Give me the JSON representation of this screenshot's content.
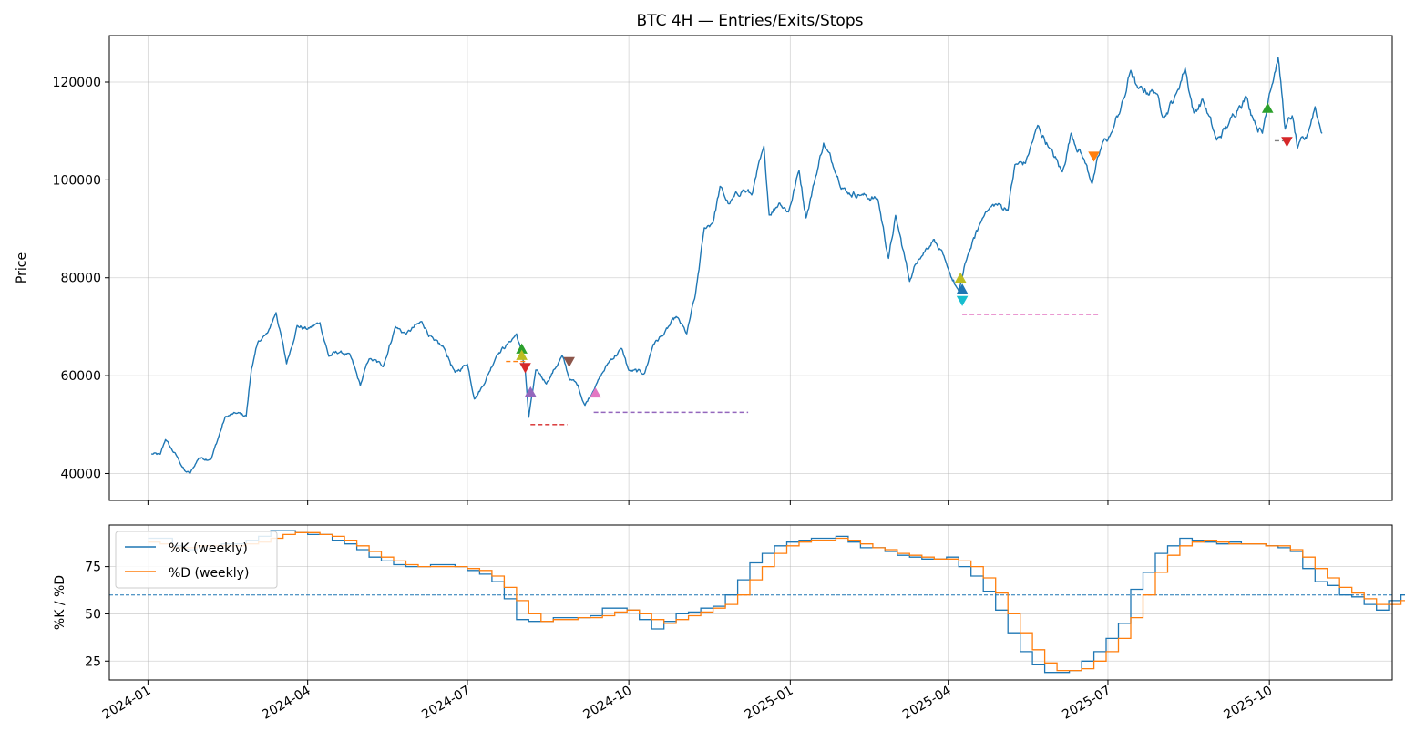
{
  "chart_data": [
    {
      "type": "line",
      "title": "BTC 4H — Entries/Exits/Stops",
      "xlabel": "",
      "ylabel": "Price",
      "xlim": [
        "2023-12-10",
        "2025-12-10"
      ],
      "ylim": [
        34500,
        129500
      ],
      "yticks": [
        40000,
        60000,
        80000,
        100000,
        120000
      ],
      "grid": true,
      "series": [
        {
          "color": "#1f77b4",
          "points": [
            [
              "2024-01-03",
              44000
            ],
            [
              "2024-01-08",
              43800
            ],
            [
              "2024-01-11",
              47000
            ],
            [
              "2024-01-14",
              45200
            ],
            [
              "2024-01-18",
              43200
            ],
            [
              "2024-01-22",
              40500
            ],
            [
              "2024-01-25",
              40000
            ],
            [
              "2024-01-30",
              43200
            ],
            [
              "2024-02-06",
              43000
            ],
            [
              "2024-02-10",
              47200
            ],
            [
              "2024-02-14",
              51500
            ],
            [
              "2024-02-20",
              52300
            ],
            [
              "2024-02-26",
              51800
            ],
            [
              "2024-02-29",
              61500
            ],
            [
              "2024-03-04",
              67000
            ],
            [
              "2024-03-09",
              68500
            ],
            [
              "2024-03-14",
              73000
            ],
            [
              "2024-03-20",
              62500
            ],
            [
              "2024-03-26",
              70200
            ],
            [
              "2024-04-01",
              69500
            ],
            [
              "2024-04-08",
              70800
            ],
            [
              "2024-04-13",
              64000
            ],
            [
              "2024-04-19",
              64800
            ],
            [
              "2024-04-25",
              64200
            ],
            [
              "2024-05-01",
              58000
            ],
            [
              "2024-05-06",
              63500
            ],
            [
              "2024-05-14",
              62000
            ],
            [
              "2024-05-21",
              70000
            ],
            [
              "2024-05-27",
              68500
            ],
            [
              "2024-06-05",
              71000
            ],
            [
              "2024-06-12",
              67000
            ],
            [
              "2024-06-18",
              65500
            ],
            [
              "2024-06-24",
              60500
            ],
            [
              "2024-07-01",
              62500
            ],
            [
              "2024-07-05",
              55500
            ],
            [
              "2024-07-10",
              58000
            ],
            [
              "2024-07-18",
              64500
            ],
            [
              "2024-07-24",
              66500
            ],
            [
              "2024-07-29",
              68500
            ],
            [
              "2024-08-01",
              64500
            ],
            [
              "2024-08-03",
              61000
            ],
            [
              "2024-08-05",
              51500
            ],
            [
              "2024-08-09",
              61000
            ],
            [
              "2024-08-15",
              58500
            ],
            [
              "2024-08-24",
              64000
            ],
            [
              "2024-08-28",
              59500
            ],
            [
              "2024-09-02",
              58000
            ],
            [
              "2024-09-06",
              54000
            ],
            [
              "2024-09-12",
              58000
            ],
            [
              "2024-09-20",
              63000
            ],
            [
              "2024-09-27",
              65500
            ],
            [
              "2024-10-01",
              61000
            ],
            [
              "2024-10-10",
              60500
            ],
            [
              "2024-10-15",
              66500
            ],
            [
              "2024-10-21",
              68500
            ],
            [
              "2024-10-28",
              72000
            ],
            [
              "2024-11-03",
              68500
            ],
            [
              "2024-11-08",
              76500
            ],
            [
              "2024-11-13",
              90000
            ],
            [
              "2024-11-18",
              91500
            ],
            [
              "2024-11-22",
              98500
            ],
            [
              "2024-11-27",
              95000
            ],
            [
              "2024-12-05",
              98000
            ],
            [
              "2024-12-10",
              97000
            ],
            [
              "2024-12-17",
              106500
            ],
            [
              "2024-12-20",
              93000
            ],
            [
              "2024-12-26",
              95500
            ],
            [
              "2024-12-31",
              93500
            ],
            [
              "2025-01-06",
              102000
            ],
            [
              "2025-01-10",
              92500
            ],
            [
              "2025-01-15",
              100000
            ],
            [
              "2025-01-20",
              107500
            ],
            [
              "2025-01-26",
              102500
            ],
            [
              "2025-02-02",
              97500
            ],
            [
              "2025-02-10",
              97000
            ],
            [
              "2025-02-20",
              96000
            ],
            [
              "2025-02-26",
              84000
            ],
            [
              "2025-03-02",
              92500
            ],
            [
              "2025-03-10",
              79500
            ],
            [
              "2025-03-15",
              84000
            ],
            [
              "2025-03-24",
              88000
            ],
            [
              "2025-03-31",
              82500
            ],
            [
              "2025-04-07",
              77000
            ],
            [
              "2025-04-12",
              84500
            ],
            [
              "2025-04-22",
              93500
            ],
            [
              "2025-04-28",
              95000
            ],
            [
              "2025-05-05",
              94000
            ],
            [
              "2025-05-09",
              103000
            ],
            [
              "2025-05-15",
              103500
            ],
            [
              "2025-05-22",
              111000
            ],
            [
              "2025-05-28",
              107000
            ],
            [
              "2025-06-05",
              101500
            ],
            [
              "2025-06-10",
              109500
            ],
            [
              "2025-06-17",
              104500
            ],
            [
              "2025-06-22",
              99500
            ],
            [
              "2025-06-28",
              107500
            ],
            [
              "2025-07-03",
              109500
            ],
            [
              "2025-07-11",
              117500
            ],
            [
              "2025-07-14",
              122500
            ],
            [
              "2025-07-18",
              118500
            ],
            [
              "2025-07-28",
              118000
            ],
            [
              "2025-08-02",
              113000
            ],
            [
              "2025-08-09",
              117500
            ],
            [
              "2025-08-14",
              123000
            ],
            [
              "2025-08-19",
              113500
            ],
            [
              "2025-08-24",
              116500
            ],
            [
              "2025-09-01",
              108000
            ],
            [
              "2025-09-08",
              111500
            ],
            [
              "2025-09-14",
              115500
            ],
            [
              "2025-09-18",
              117000
            ],
            [
              "2025-09-22",
              112500
            ],
            [
              "2025-09-27",
              109500
            ],
            [
              "2025-10-01",
              118000
            ],
            [
              "2025-10-06",
              125000
            ],
            [
              "2025-10-10",
              110500
            ],
            [
              "2025-10-14",
              113000
            ],
            [
              "2025-10-17",
              106500
            ],
            [
              "2025-10-22",
              108500
            ],
            [
              "2025-10-27",
              115000
            ],
            [
              "2025-10-31",
              109500
            ]
          ]
        }
      ],
      "markers": [
        {
          "kind": "entry",
          "shape": "triangle-up",
          "color": "#2ca02c",
          "x": "2024-08-01",
          "y": 65300
        },
        {
          "kind": "entry",
          "shape": "triangle-up",
          "color": "#bcbd22",
          "x": "2024-08-01",
          "y": 64000
        },
        {
          "kind": "exit",
          "shape": "triangle-down",
          "color": "#d62728",
          "x": "2024-08-03",
          "y": 61800
        },
        {
          "kind": "entry",
          "shape": "triangle-up",
          "color": "#9467bd",
          "x": "2024-08-06",
          "y": 56500
        },
        {
          "kind": "exit",
          "shape": "triangle-down",
          "color": "#8c564b",
          "x": "2024-08-28",
          "y": 63000
        },
        {
          "kind": "entry",
          "shape": "triangle-up",
          "color": "#e377c2",
          "x": "2024-09-12",
          "y": 56300
        },
        {
          "kind": "entry",
          "shape": "triangle-up",
          "color": "#bcbd22",
          "x": "2025-04-08",
          "y": 79800
        },
        {
          "kind": "entry",
          "shape": "triangle-up",
          "color": "#1f77b4",
          "x": "2025-04-09",
          "y": 77500
        },
        {
          "kind": "exit",
          "shape": "triangle-down",
          "color": "#17becf",
          "x": "2025-04-09",
          "y": 75500
        },
        {
          "kind": "exit",
          "shape": "triangle-down",
          "color": "#ff7f0e",
          "x": "2025-06-23",
          "y": 105000
        },
        {
          "kind": "entry",
          "shape": "triangle-up",
          "color": "#2ca02c",
          "x": "2025-09-30",
          "y": 114500
        },
        {
          "kind": "exit",
          "shape": "triangle-down",
          "color": "#d62728",
          "x": "2025-10-11",
          "y": 108000
        }
      ],
      "stops": [
        {
          "color": "#ff7f0e",
          "x0": "2024-07-23",
          "x1": "2024-08-03",
          "y": 62900
        },
        {
          "color": "#d62728",
          "x0": "2024-08-06",
          "x1": "2024-08-27",
          "y": 50000
        },
        {
          "color": "#9467bd",
          "x0": "2024-09-11",
          "x1": "2024-12-08",
          "y": 52500
        },
        {
          "color": "#e377c2",
          "x0": "2025-04-09",
          "x1": "2025-06-26",
          "y": 72500
        },
        {
          "color": "#7f7f7f",
          "x0": "2025-10-04",
          "x1": "2025-10-10",
          "y": 108000
        }
      ]
    },
    {
      "type": "line",
      "title": "",
      "xlabel": "",
      "ylabel": "%K / %D",
      "xlim": [
        "2023-12-10",
        "2025-12-10"
      ],
      "ylim": [
        15,
        97
      ],
      "yticks": [
        25,
        50,
        75
      ],
      "xticks": [
        "2024-01",
        "2024-04",
        "2024-07",
        "2024-10",
        "2025-01",
        "2025-04",
        "2025-07",
        "2025-10"
      ],
      "grid": true,
      "legend": "upper-left",
      "threshold": {
        "y": 60,
        "color": "#1f77b4",
        "style": "dashed"
      },
      "series": [
        {
          "name": "%K (weekly)",
          "color": "#1f77b4",
          "step": "post",
          "start": "2024-01-01",
          "interval_days": 7,
          "values": [
            90,
            90,
            86,
            84,
            86,
            86,
            87,
            87,
            89,
            91,
            94,
            94,
            93,
            92,
            92,
            89,
            87,
            84,
            80,
            78,
            76,
            75,
            75,
            76,
            76,
            75,
            73,
            71,
            67,
            58,
            47,
            46,
            46,
            48,
            48,
            48,
            49,
            53,
            53,
            52,
            47,
            42,
            46,
            50,
            51,
            53,
            54,
            60,
            68,
            77,
            82,
            86,
            88,
            89,
            90,
            90,
            91,
            88,
            85,
            85,
            83,
            81,
            80,
            79,
            79,
            80,
            75,
            70,
            62,
            52,
            40,
            30,
            23,
            19,
            19,
            20,
            25,
            30,
            37,
            45,
            63,
            72,
            82,
            86,
            90,
            89,
            88,
            87,
            88,
            87,
            87,
            86,
            85,
            83,
            74,
            67,
            65,
            60,
            59,
            55,
            52,
            57,
            60,
            62,
            61,
            58,
            56,
            52
          ]
        },
        {
          "name": "%D (weekly)",
          "color": "#ff7f0e",
          "step": "post",
          "start": "2024-01-01",
          "interval_days": 7,
          "values": [
            88,
            87,
            85,
            85,
            86,
            86,
            86,
            86,
            87,
            88,
            90,
            92,
            93,
            93,
            92,
            91,
            89,
            86,
            83,
            80,
            78,
            76,
            75,
            75,
            75,
            75,
            74,
            73,
            70,
            64,
            57,
            50,
            46,
            47,
            47,
            48,
            48,
            49,
            51,
            52,
            50,
            47,
            45,
            47,
            49,
            51,
            53,
            55,
            60,
            68,
            75,
            82,
            86,
            88,
            89,
            89,
            90,
            89,
            87,
            85,
            84,
            82,
            81,
            80,
            79,
            79,
            78,
            75,
            69,
            61,
            50,
            40,
            31,
            24,
            20,
            20,
            21,
            25,
            30,
            37,
            48,
            60,
            72,
            81,
            86,
            88,
            89,
            88,
            87,
            87,
            87,
            86,
            86,
            84,
            80,
            74,
            69,
            64,
            61,
            58,
            55,
            55,
            57,
            58,
            60,
            60,
            58,
            55
          ]
        }
      ]
    }
  ]
}
